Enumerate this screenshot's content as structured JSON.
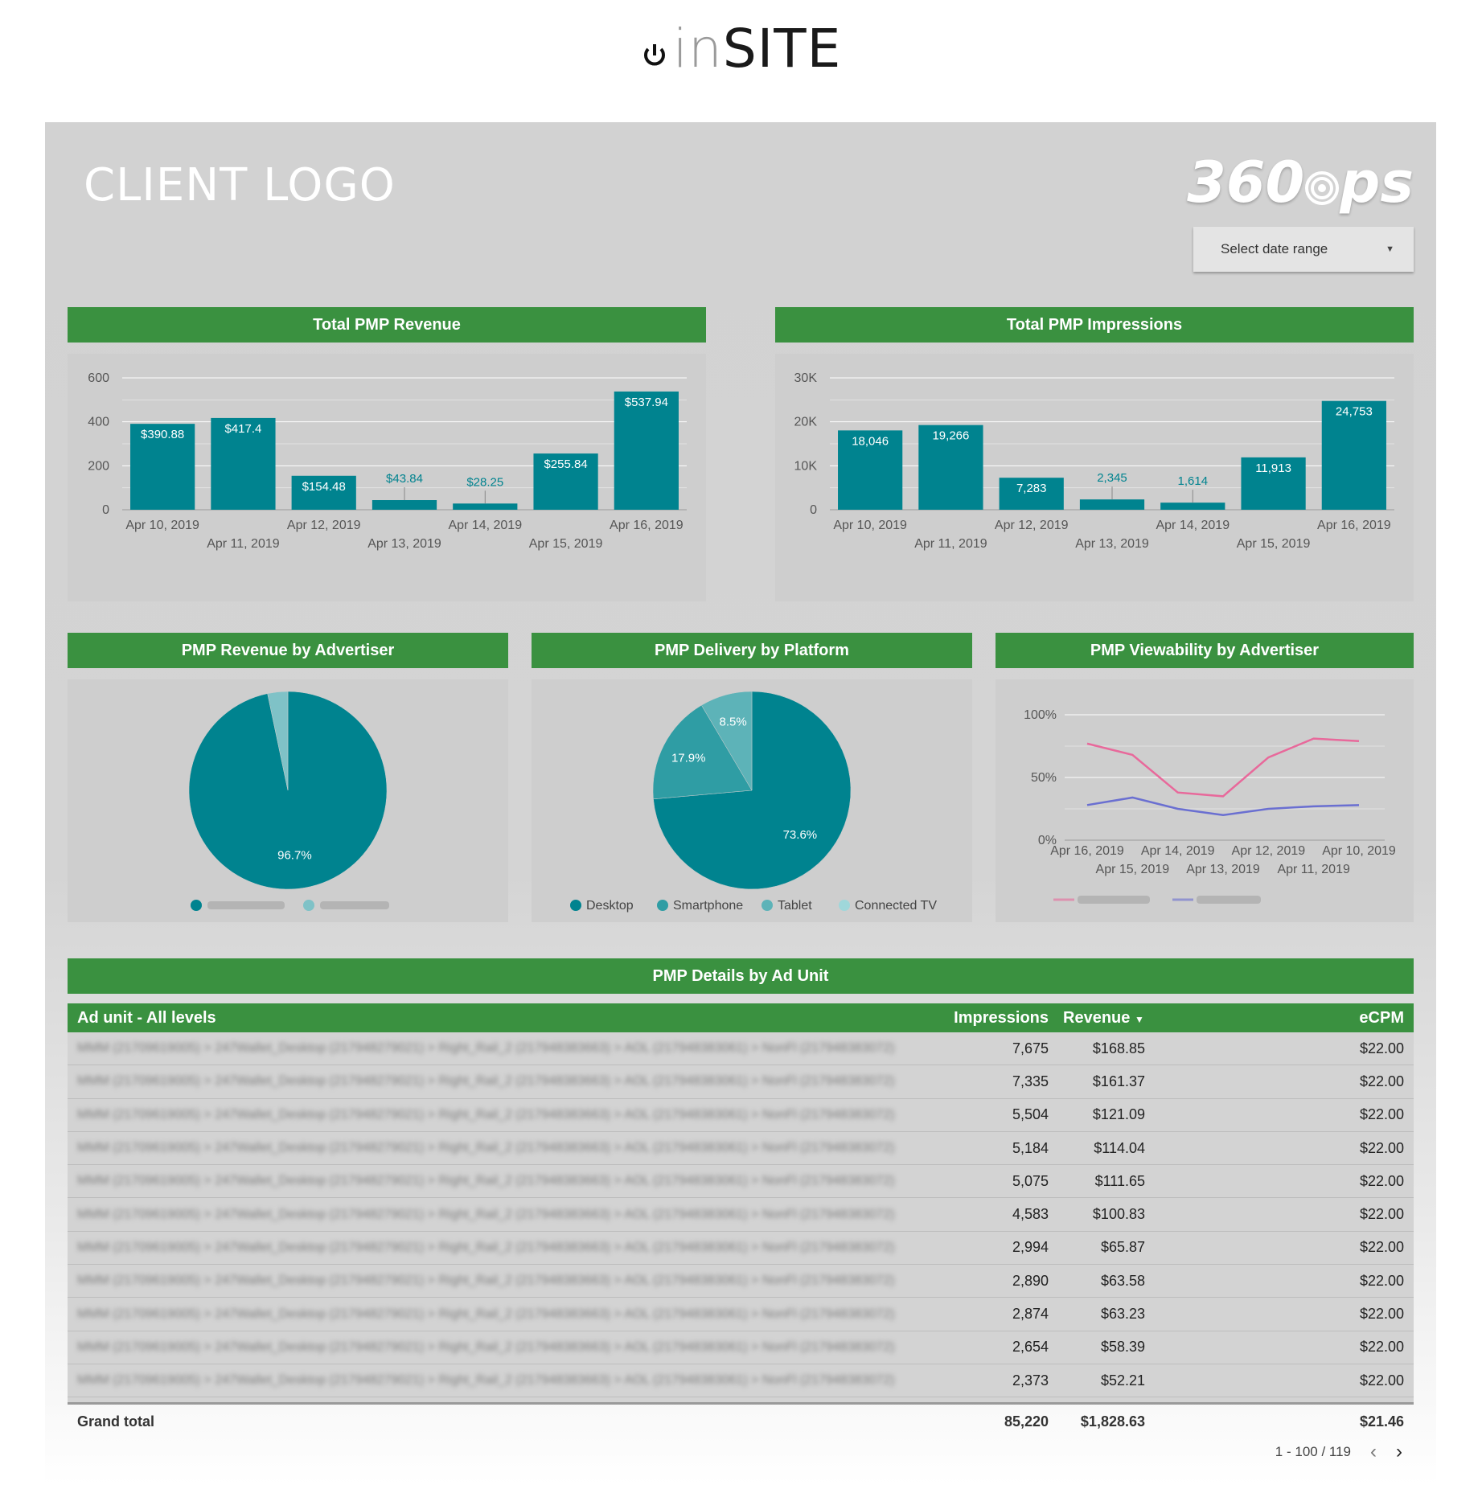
{
  "brand": {
    "prefix": "in",
    "name": "SITE"
  },
  "header": {
    "client_logo": "CLIENT LOGO",
    "ops_logo": "360ops",
    "date_range": {
      "label": "Select date range",
      "icon": "caret-down-icon"
    }
  },
  "colors": {
    "accent": "#3a9140",
    "bar": "#00838f",
    "line1": "#e8699b",
    "line2": "#6a6fd1"
  },
  "chart_data": [
    {
      "id": "revenue",
      "type": "bar",
      "title": "Total PMP Revenue",
      "categories": [
        "Apr 10, 2019",
        "Apr 11, 2019",
        "Apr 12, 2019",
        "Apr 13, 2019",
        "Apr 14, 2019",
        "Apr 15, 2019",
        "Apr 16, 2019"
      ],
      "values": [
        390.88,
        417.4,
        154.48,
        43.84,
        28.25,
        255.84,
        537.94
      ],
      "labels": [
        "$390.88",
        "$417.4",
        "$154.48",
        "$43.84",
        "$28.25",
        "$255.84",
        "$537.94"
      ],
      "yticks": [
        "0",
        "200",
        "400",
        "600"
      ],
      "ylim": [
        0,
        600
      ],
      "grid": true
    },
    {
      "id": "impressions",
      "type": "bar",
      "title": "Total PMP Impressions",
      "categories": [
        "Apr 10, 2019",
        "Apr 11, 2019",
        "Apr 12, 2019",
        "Apr 13, 2019",
        "Apr 14, 2019",
        "Apr 15, 2019",
        "Apr 16, 2019"
      ],
      "values": [
        18046,
        19266,
        7283,
        2345,
        1614,
        11913,
        24753
      ],
      "labels": [
        "18,046",
        "19,266",
        "7,283",
        "2,345",
        "1,614",
        "11,913",
        "24,753"
      ],
      "yticks": [
        "0",
        "10K",
        "20K",
        "30K"
      ],
      "ylim": [
        0,
        30000
      ],
      "grid": true
    },
    {
      "id": "rev_adv",
      "type": "pie",
      "title": "PMP Revenue by Advertiser",
      "values": [
        96.7,
        3.3
      ],
      "labels": [
        "96.7%",
        ""
      ],
      "colors": [
        "#00838f",
        "#7fc2c7"
      ],
      "legend_placement": "bottom"
    },
    {
      "id": "platform",
      "type": "pie",
      "title": "PMP Delivery by Platform",
      "values": [
        73.6,
        17.9,
        8.5,
        0
      ],
      "labels": [
        "73.6%",
        "17.9%",
        "8.5%",
        ""
      ],
      "legend": [
        "Desktop",
        "Smartphone",
        "Tablet",
        "Connected TV"
      ],
      "colors": [
        "#00838f",
        "#2f9da4",
        "#5db3b8",
        "#9fd7da"
      ],
      "legend_placement": "bottom"
    },
    {
      "id": "viewability",
      "type": "line",
      "title": "PMP Viewability by Advertiser",
      "categories": [
        "Apr 16, 2019",
        "Apr 15, 2019",
        "Apr 14, 2019",
        "Apr 13, 2019",
        "Apr 12, 2019",
        "Apr 11, 2019",
        "Apr 10, 2019"
      ],
      "yticks": [
        "0%",
        "50%",
        "100%"
      ],
      "ylim": [
        0,
        100
      ],
      "series": [
        {
          "values": [
            77,
            68,
            38,
            35,
            66,
            81,
            79
          ]
        },
        {
          "values": [
            28,
            34,
            25,
            20,
            25,
            27,
            28
          ]
        }
      ],
      "legend_placement": "bottom",
      "grid": true
    }
  ],
  "table": {
    "title": "PMP Details by Ad Unit",
    "columns": [
      "Ad unit - All levels",
      "Impressions",
      "Revenue",
      "eCPM"
    ],
    "sort_icon": "sort-desc-icon",
    "rows": [
      [
        "7,675",
        "$168.85",
        "$22.00"
      ],
      [
        "7,335",
        "$161.37",
        "$22.00"
      ],
      [
        "5,504",
        "$121.09",
        "$22.00"
      ],
      [
        "5,184",
        "$114.04",
        "$22.00"
      ],
      [
        "5,075",
        "$111.65",
        "$22.00"
      ],
      [
        "4,583",
        "$100.83",
        "$22.00"
      ],
      [
        "2,994",
        "$65.87",
        "$22.00"
      ],
      [
        "2,890",
        "$63.58",
        "$22.00"
      ],
      [
        "2,874",
        "$63.23",
        "$22.00"
      ],
      [
        "2,654",
        "$58.39",
        "$22.00"
      ],
      [
        "2,373",
        "$52.21",
        "$22.00"
      ]
    ],
    "grand_total": {
      "label": "Grand total",
      "impressions": "85,220",
      "revenue": "$1,828.63",
      "ecpm": "$21.46"
    },
    "pagination": "1 - 100 / 119"
  }
}
